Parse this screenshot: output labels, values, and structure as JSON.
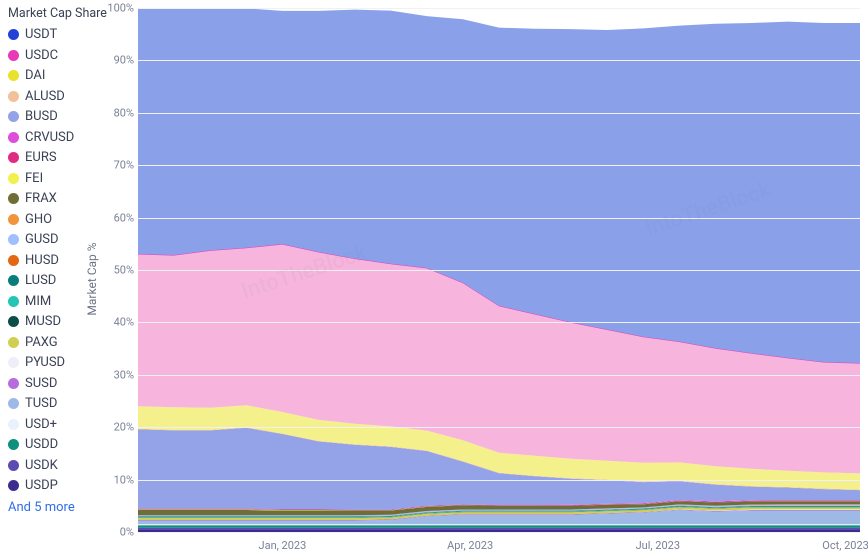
{
  "chart": {
    "title": "Market Cap Share",
    "ylabel": "Market Cap %",
    "type": "stacked-area",
    "plot_bg": "#ffffff",
    "grid_color": "#f0f1f4",
    "ylim": [
      0,
      100
    ],
    "yticks": [
      0,
      10,
      20,
      30,
      40,
      50,
      60,
      70,
      80,
      90,
      100
    ],
    "ytick_format_suffix": "%",
    "x_positions": [
      0,
      5,
      10,
      15,
      20,
      25,
      30,
      35,
      40,
      45,
      50,
      55,
      60,
      65,
      70,
      75,
      80,
      85,
      90,
      95,
      100
    ],
    "xticks": [
      {
        "pos": 20,
        "label": "Jan, 2023"
      },
      {
        "pos": 46,
        "label": "Apr, 2023"
      },
      {
        "pos": 72,
        "label": "Jul, 2023"
      },
      {
        "pos": 98,
        "label": "Oct, 2023"
      }
    ],
    "series": [
      {
        "name": "USDP",
        "color": "#3b2d8f",
        "values": [
          0.5,
          0.5,
          0.5,
          0.5,
          0.5,
          0.5,
          0.5,
          0.5,
          0.5,
          0.5,
          0.5,
          0.5,
          0.5,
          0.5,
          0.5,
          0.5,
          0.5,
          0.5,
          0.5,
          0.5,
          0.5
        ]
      },
      {
        "name": "USDK",
        "color": "#5b4bb2",
        "values": [
          0.3,
          0.3,
          0.3,
          0.3,
          0.3,
          0.3,
          0.3,
          0.3,
          0.3,
          0.3,
          0.3,
          0.3,
          0.3,
          0.3,
          0.3,
          0.3,
          0.3,
          0.3,
          0.3,
          0.3,
          0.3
        ]
      },
      {
        "name": "USDD",
        "color": "#0f8f7d",
        "values": [
          0.5,
          0.5,
          0.5,
          0.5,
          0.5,
          0.5,
          0.5,
          0.5,
          0.5,
          0.5,
          0.5,
          0.5,
          0.5,
          0.5,
          0.5,
          0.5,
          0.5,
          0.5,
          0.5,
          0.5,
          0.5
        ]
      },
      {
        "name": "USD+",
        "color": "#e9f1fc",
        "values": [
          0.2,
          0.2,
          0.2,
          0.2,
          0.2,
          0.2,
          0.2,
          0.2,
          0.2,
          0.2,
          0.2,
          0.2,
          0.2,
          0.2,
          0.2,
          0.2,
          0.2,
          0.2,
          0.2,
          0.2,
          0.2
        ]
      },
      {
        "name": "TUSD",
        "color": "#9fb9e6",
        "values": [
          0.7,
          0.7,
          0.7,
          0.7,
          0.7,
          0.7,
          0.7,
          0.8,
          1.5,
          1.8,
          1.8,
          1.8,
          1.8,
          2,
          2.2,
          2.7,
          2.4,
          2.6,
          2.6,
          2.6,
          2.6
        ]
      },
      {
        "name": "SUSD",
        "color": "#b76cdc",
        "values": [
          0.1,
          0.1,
          0.1,
          0.1,
          0.1,
          0.1,
          0.1,
          0.1,
          0.1,
          0.1,
          0.1,
          0.1,
          0.1,
          0.1,
          0.1,
          0.1,
          0.1,
          0.1,
          0.1,
          0.1,
          0.1
        ]
      },
      {
        "name": "PYUSD",
        "color": "#f1ecfa",
        "values": [
          0,
          0,
          0,
          0,
          0,
          0,
          0,
          0,
          0,
          0,
          0,
          0,
          0,
          0,
          0,
          0.05,
          0.08,
          0.1,
          0.12,
          0.12,
          0.12
        ]
      },
      {
        "name": "PAXG",
        "color": "#d0cf52",
        "values": [
          0.4,
          0.4,
          0.4,
          0.4,
          0.4,
          0.4,
          0.4,
          0.4,
          0.4,
          0.4,
          0.4,
          0.4,
          0.4,
          0.4,
          0.4,
          0.4,
          0.4,
          0.4,
          0.4,
          0.4,
          0.4
        ]
      },
      {
        "name": "MUSD",
        "color": "#0d4d47",
        "values": [
          0.05,
          0.05,
          0.05,
          0.05,
          0.05,
          0.05,
          0.05,
          0.05,
          0.05,
          0.05,
          0.05,
          0.05,
          0.05,
          0.05,
          0.05,
          0.05,
          0.05,
          0.05,
          0.05,
          0.05,
          0.05
        ]
      },
      {
        "name": "MIM",
        "color": "#23c6b4",
        "values": [
          0.1,
          0.1,
          0.1,
          0.1,
          0.1,
          0.1,
          0.1,
          0.1,
          0.1,
          0.1,
          0.1,
          0.1,
          0.1,
          0.1,
          0.1,
          0.1,
          0.1,
          0.1,
          0.1,
          0.1,
          0.1
        ]
      },
      {
        "name": "LUSD",
        "color": "#0b7c7c",
        "values": [
          0.1,
          0.1,
          0.1,
          0.1,
          0.1,
          0.1,
          0.1,
          0.1,
          0.1,
          0.1,
          0.1,
          0.1,
          0.1,
          0.1,
          0.1,
          0.1,
          0.1,
          0.1,
          0.1,
          0.1,
          0.1
        ]
      },
      {
        "name": "HUSD",
        "color": "#e46713",
        "values": [
          0.05,
          0.05,
          0.05,
          0.05,
          0.05,
          0.05,
          0.05,
          0.05,
          0.05,
          0.05,
          0.05,
          0.05,
          0.05,
          0.05,
          0.05,
          0.05,
          0.05,
          0.05,
          0.05,
          0.05,
          0.05
        ]
      },
      {
        "name": "GUSD",
        "color": "#9fbfff",
        "values": [
          0.2,
          0.2,
          0.2,
          0.2,
          0.2,
          0.2,
          0.2,
          0.2,
          0.2,
          0.2,
          0.2,
          0.2,
          0.2,
          0.2,
          0.2,
          0.2,
          0.2,
          0.2,
          0.2,
          0.2,
          0.2
        ]
      },
      {
        "name": "GHO",
        "color": "#f1943c",
        "values": [
          0,
          0,
          0,
          0,
          0,
          0,
          0,
          0,
          0,
          0,
          0,
          0,
          0,
          0,
          0,
          0.02,
          0.04,
          0.05,
          0.05,
          0.05,
          0.05
        ]
      },
      {
        "name": "FRAX",
        "color": "#6e6e36",
        "values": [
          1,
          1,
          1,
          1,
          0.9,
          0.9,
          0.9,
          0.8,
          0.8,
          0.8,
          0.7,
          0.7,
          0.7,
          0.7,
          0.6,
          0.6,
          0.6,
          0.6,
          0.6,
          0.6,
          0.6
        ]
      },
      {
        "name": "FEI",
        "color": "#f3f04d",
        "values": [
          0.1,
          0.1,
          0.1,
          0.1,
          0.1,
          0.1,
          0.05,
          0.05,
          0.05,
          0.02,
          0.02,
          0.02,
          0.02,
          0.02,
          0.02,
          0.02,
          0.02,
          0.02,
          0.02,
          0.02,
          0.02
        ]
      },
      {
        "name": "EURS",
        "color": "#df2b82",
        "values": [
          0.1,
          0.1,
          0.1,
          0.1,
          0.1,
          0.1,
          0.1,
          0.1,
          0.1,
          0.1,
          0.1,
          0.1,
          0.1,
          0.1,
          0.1,
          0.1,
          0.1,
          0.1,
          0.1,
          0.1,
          0.1
        ]
      },
      {
        "name": "CRVUSD",
        "color": "#de4edb",
        "values": [
          0,
          0,
          0,
          0,
          0,
          0,
          0,
          0,
          0,
          0,
          0,
          0.02,
          0.05,
          0.08,
          0.1,
          0.1,
          0.1,
          0.1,
          0.1,
          0.1,
          0.1
        ]
      },
      {
        "name": "BUSD",
        "color": "#94a3e8",
        "values": [
          15.2,
          15,
          15,
          15.5,
          14.4,
          13,
          12.4,
          12.0,
          10.5,
          8.2,
          6.1,
          5.5,
          5.0,
          4.5,
          4.0,
          3.6,
          3.2,
          2.6,
          2.4,
          2.1,
          1.9
        ]
      },
      {
        "name": "ALUSD",
        "color": "#f2c09b",
        "values": [
          0.1,
          0.1,
          0.1,
          0.1,
          0.1,
          0.1,
          0.1,
          0.1,
          0.1,
          0.1,
          0.1,
          0.1,
          0.1,
          0.1,
          0.1,
          0.1,
          0.1,
          0.1,
          0.1,
          0.1,
          0.1
        ]
      },
      {
        "name": "DAI",
        "color": "#f4f08c",
        "values": [
          4.3,
          4.3,
          4.2,
          4.2,
          4.1,
          4.0,
          3.9,
          3.8,
          3.8,
          4.0,
          3.8,
          3.8,
          3.7,
          3.6,
          3.6,
          3.5,
          3.4,
          3.3,
          3.1,
          3.1,
          3.1
        ]
      },
      {
        "name": "USDC",
        "color": "#f7b5dd",
        "values": [
          29,
          29,
          30,
          30,
          32,
          32,
          31.5,
          31,
          31,
          30,
          28,
          27,
          26,
          25,
          24,
          23,
          22.5,
          22,
          21.5,
          21,
          21
        ]
      },
      {
        "name": "USDT",
        "color": "#8aa1ea",
        "values": [
          46.95,
          47.15,
          46.25,
          45.75,
          44.55,
          46.05,
          47.55,
          48.35,
          48.1,
          50.33,
          53.13,
          54.51,
          56,
          57.2,
          58.88,
          60.34,
          61.96,
          63.07,
          64.21,
          64.75,
          64.95
        ]
      }
    ],
    "top_border_color": "#2441d6",
    "usdc_stroke": "#e738b9",
    "watermark_text": "IntoTheBlock",
    "legend_items": [
      {
        "name": "USDT",
        "color": "#2441d6"
      },
      {
        "name": "USDC",
        "color": "#e738b9"
      },
      {
        "name": "DAI",
        "color": "#e8e22c"
      },
      {
        "name": "ALUSD",
        "color": "#f2c09b"
      },
      {
        "name": "BUSD",
        "color": "#94a3e8"
      },
      {
        "name": "CRVUSD",
        "color": "#de4edb"
      },
      {
        "name": "EURS",
        "color": "#df2b82"
      },
      {
        "name": "FEI",
        "color": "#f3f04d"
      },
      {
        "name": "FRAX",
        "color": "#6e6e36"
      },
      {
        "name": "GHO",
        "color": "#f1943c"
      },
      {
        "name": "GUSD",
        "color": "#9fbfff"
      },
      {
        "name": "HUSD",
        "color": "#e46713"
      },
      {
        "name": "LUSD",
        "color": "#0b7c7c"
      },
      {
        "name": "MIM",
        "color": "#23c6b4"
      },
      {
        "name": "MUSD",
        "color": "#0d4d47"
      },
      {
        "name": "PAXG",
        "color": "#d0cf52"
      },
      {
        "name": "PYUSD",
        "color": "#f1ecfa"
      },
      {
        "name": "SUSD",
        "color": "#b76cdc"
      },
      {
        "name": "TUSD",
        "color": "#9fb9e6"
      },
      {
        "name": "USD+",
        "color": "#e9f1fc"
      },
      {
        "name": "USDD",
        "color": "#0f8f7d"
      },
      {
        "name": "USDK",
        "color": "#5b4bb2"
      },
      {
        "name": "USDP",
        "color": "#3b2d8f"
      }
    ],
    "legend_more": "And 5 more"
  }
}
